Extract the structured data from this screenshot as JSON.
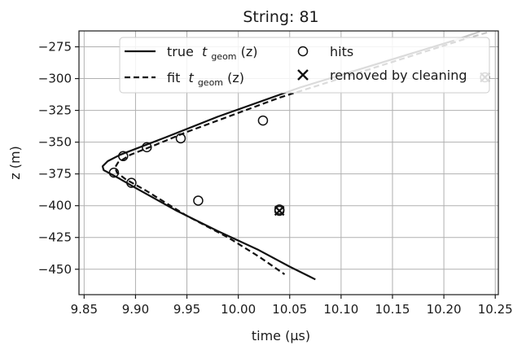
{
  "chart_data": {
    "type": "scatter",
    "title": "String: 81",
    "xlabel": "time (μs)",
    "ylabel": "z (m)",
    "xlim": [
      9.845,
      10.253
    ],
    "ylim": [
      -470.0,
      -262.5
    ],
    "x_ticks": [
      9.85,
      9.9,
      9.95,
      10.0,
      10.05,
      10.1,
      10.15,
      10.2,
      10.25
    ],
    "x_tick_labels": [
      "9.85",
      "9.90",
      "9.95",
      "10.00",
      "10.05",
      "10.10",
      "10.15",
      "10.20",
      "10.25"
    ],
    "y_ticks": [
      -275,
      -300,
      -325,
      -350,
      -375,
      -400,
      -425,
      -450
    ],
    "y_tick_labels": [
      "−275",
      "−300",
      "−325",
      "−350",
      "−375",
      "−400",
      "−425",
      "−450"
    ],
    "grid": true,
    "legend_position": "top-right",
    "legend": {
      "true_label": "true",
      "fit_label": "fit",
      "t_symbol": "t",
      "subscript": "geom",
      "arg": "(z)",
      "hits_label": "hits",
      "removed_label": "removed by cleaning"
    },
    "series": [
      {
        "key": "true",
        "style": "solid",
        "color": "#111111",
        "x": [
          10.21,
          10.06,
          9.98,
          9.93,
          9.885,
          9.873,
          9.868,
          9.869,
          9.876,
          9.885,
          9.9,
          9.94,
          9.98,
          10.02,
          10.05,
          10.075
        ],
        "y": [
          -270,
          -307,
          -330,
          -346,
          -360,
          -365,
          -369,
          -372,
          -375,
          -379,
          -386,
          -404,
          -420,
          -435,
          -448,
          -458
        ]
      },
      {
        "key": "fit",
        "style": "dashed",
        "color": "#111111",
        "x": [
          10.22,
          10.13,
          10.04,
          9.99,
          9.95,
          9.92,
          9.895,
          9.883,
          9.88,
          9.882,
          9.89,
          9.91,
          9.95,
          9.99,
          10.02,
          10.045
        ],
        "y": [
          -269,
          -292,
          -315,
          -330,
          -342,
          -352,
          -360,
          -366,
          -370,
          -374,
          -379,
          -388,
          -408,
          -425,
          -440,
          -454
        ]
      },
      {
        "key": "true-faded",
        "style": "solid",
        "color": "#c8c8c8",
        "x": [
          10.21,
          10.235
        ],
        "y": [
          -270,
          -263
        ]
      },
      {
        "key": "fit-faded",
        "style": "dashed",
        "color": "#c8c8c8",
        "x": [
          10.22,
          10.245
        ],
        "y": [
          -269,
          -263
        ]
      }
    ],
    "hits": {
      "x": [
        9.879,
        9.888,
        9.896,
        9.911,
        9.944,
        9.961,
        10.024,
        10.04,
        10.04,
        10.24
      ],
      "y": [
        -374,
        -361,
        -382,
        -354,
        -347,
        -396,
        -333,
        -403,
        -404,
        -299
      ]
    },
    "removed": {
      "x": [
        10.04,
        10.24
      ],
      "y": [
        -404,
        -299
      ]
    },
    "colors": {
      "axis": "#1a1a1a",
      "grid": "#b0b0b0",
      "line": "#111111",
      "faded": "#c8c8c8"
    }
  }
}
